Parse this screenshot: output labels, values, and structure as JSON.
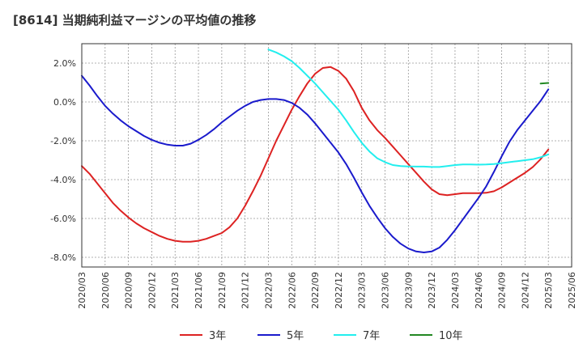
{
  "chart_data": {
    "type": "line",
    "title": "[8614]  当期純利益マージンの平均値の推移",
    "xlabel": "",
    "ylabel": "",
    "x_ticks": [
      "2020/03",
      "2020/06",
      "2020/09",
      "2020/12",
      "2021/03",
      "2021/06",
      "2021/09",
      "2021/12",
      "2022/03",
      "2022/06",
      "2022/09",
      "2022/12",
      "2023/03",
      "2023/06",
      "2023/09",
      "2023/12",
      "2024/03",
      "2024/06",
      "2024/09",
      "2024/12",
      "2025/03",
      "2025/06"
    ],
    "y_ticks": [
      "2.0%",
      "0.0%",
      "-2.0%",
      "-4.0%",
      "-6.0%",
      "-8.0%"
    ],
    "y_tick_values": [
      2,
      0,
      -2,
      -4,
      -6,
      -8
    ],
    "ylim": [
      -8.5,
      3.0
    ],
    "xlim": [
      "2020/03",
      "2025/06"
    ],
    "grid": "dashed vertical and horizontal",
    "legend_position": "bottom",
    "series": [
      {
        "name": "3年",
        "color": "#dd2222",
        "points": [
          [
            "2020/03",
            -3.3
          ],
          [
            "2020/04",
            -3.7
          ],
          [
            "2020/05",
            -4.2
          ],
          [
            "2020/06",
            -4.7
          ],
          [
            "2020/07",
            -5.2
          ],
          [
            "2020/08",
            -5.6
          ],
          [
            "2020/09",
            -5.95
          ],
          [
            "2020/10",
            -6.25
          ],
          [
            "2020/11",
            -6.5
          ],
          [
            "2020/12",
            -6.7
          ],
          [
            "2021/01",
            -6.9
          ],
          [
            "2021/02",
            -7.05
          ],
          [
            "2021/03",
            -7.15
          ],
          [
            "2021/04",
            -7.2
          ],
          [
            "2021/05",
            -7.2
          ],
          [
            "2021/06",
            -7.15
          ],
          [
            "2021/07",
            -7.05
          ],
          [
            "2021/08",
            -6.9
          ],
          [
            "2021/09",
            -6.75
          ],
          [
            "2021/10",
            -6.45
          ],
          [
            "2021/11",
            -6.0
          ],
          [
            "2021/12",
            -5.35
          ],
          [
            "2022/01",
            -4.6
          ],
          [
            "2022/02",
            -3.8
          ],
          [
            "2022/03",
            -2.9
          ],
          [
            "2022/04",
            -2.0
          ],
          [
            "2022/05",
            -1.2
          ],
          [
            "2022/06",
            -0.4
          ],
          [
            "2022/07",
            0.3
          ],
          [
            "2022/08",
            0.95
          ],
          [
            "2022/09",
            1.45
          ],
          [
            "2022/10",
            1.75
          ],
          [
            "2022/11",
            1.8
          ],
          [
            "2022/12",
            1.6
          ],
          [
            "2023/01",
            1.2
          ],
          [
            "2023/02",
            0.55
          ],
          [
            "2023/03",
            -0.3
          ],
          [
            "2023/04",
            -0.95
          ],
          [
            "2023/05",
            -1.45
          ],
          [
            "2023/06",
            -1.85
          ],
          [
            "2023/07",
            -2.3
          ],
          [
            "2023/08",
            -2.75
          ],
          [
            "2023/09",
            -3.2
          ],
          [
            "2023/10",
            -3.65
          ],
          [
            "2023/11",
            -4.1
          ],
          [
            "2023/12",
            -4.5
          ],
          [
            "2024/01",
            -4.75
          ],
          [
            "2024/02",
            -4.8
          ],
          [
            "2024/03",
            -4.75
          ],
          [
            "2024/04",
            -4.7
          ],
          [
            "2024/05",
            -4.7
          ],
          [
            "2024/06",
            -4.7
          ],
          [
            "2024/07",
            -4.68
          ],
          [
            "2024/08",
            -4.6
          ],
          [
            "2024/09",
            -4.4
          ],
          [
            "2024/10",
            -4.15
          ],
          [
            "2024/11",
            -3.9
          ],
          [
            "2024/12",
            -3.65
          ],
          [
            "2025/01",
            -3.35
          ],
          [
            "2025/02",
            -2.95
          ],
          [
            "2025/03",
            -2.45
          ]
        ]
      },
      {
        "name": "5年",
        "color": "#1a1acc",
        "points": [
          [
            "2020/03",
            1.35
          ],
          [
            "2020/04",
            0.85
          ],
          [
            "2020/05",
            0.3
          ],
          [
            "2020/06",
            -0.2
          ],
          [
            "2020/07",
            -0.6
          ],
          [
            "2020/08",
            -0.95
          ],
          [
            "2020/09",
            -1.25
          ],
          [
            "2020/10",
            -1.5
          ],
          [
            "2020/11",
            -1.75
          ],
          [
            "2020/12",
            -1.95
          ],
          [
            "2021/01",
            -2.1
          ],
          [
            "2021/02",
            -2.2
          ],
          [
            "2021/03",
            -2.25
          ],
          [
            "2021/04",
            -2.25
          ],
          [
            "2021/05",
            -2.15
          ],
          [
            "2021/06",
            -1.95
          ],
          [
            "2021/07",
            -1.7
          ],
          [
            "2021/08",
            -1.4
          ],
          [
            "2021/09",
            -1.05
          ],
          [
            "2021/10",
            -0.75
          ],
          [
            "2021/11",
            -0.45
          ],
          [
            "2021/12",
            -0.2
          ],
          [
            "2022/01",
            0.0
          ],
          [
            "2022/02",
            0.1
          ],
          [
            "2022/03",
            0.15
          ],
          [
            "2022/04",
            0.15
          ],
          [
            "2022/05",
            0.1
          ],
          [
            "2022/06",
            -0.05
          ],
          [
            "2022/07",
            -0.3
          ],
          [
            "2022/08",
            -0.65
          ],
          [
            "2022/09",
            -1.1
          ],
          [
            "2022/10",
            -1.6
          ],
          [
            "2022/11",
            -2.1
          ],
          [
            "2022/12",
            -2.6
          ],
          [
            "2023/01",
            -3.2
          ],
          [
            "2023/02",
            -3.9
          ],
          [
            "2023/03",
            -4.65
          ],
          [
            "2023/04",
            -5.35
          ],
          [
            "2023/05",
            -5.95
          ],
          [
            "2023/06",
            -6.5
          ],
          [
            "2023/07",
            -6.95
          ],
          [
            "2023/08",
            -7.3
          ],
          [
            "2023/09",
            -7.55
          ],
          [
            "2023/10",
            -7.7
          ],
          [
            "2023/11",
            -7.75
          ],
          [
            "2023/12",
            -7.7
          ],
          [
            "2024/01",
            -7.5
          ],
          [
            "2024/02",
            -7.1
          ],
          [
            "2024/03",
            -6.6
          ],
          [
            "2024/04",
            -6.05
          ],
          [
            "2024/05",
            -5.5
          ],
          [
            "2024/06",
            -4.95
          ],
          [
            "2024/07",
            -4.35
          ],
          [
            "2024/08",
            -3.6
          ],
          [
            "2024/09",
            -2.8
          ],
          [
            "2024/10",
            -2.05
          ],
          [
            "2024/11",
            -1.45
          ],
          [
            "2024/12",
            -0.95
          ],
          [
            "2025/01",
            -0.45
          ],
          [
            "2025/02",
            0.05
          ],
          [
            "2025/03",
            0.65
          ]
        ]
      },
      {
        "name": "7年",
        "color": "#22eeee",
        "points": [
          [
            "2022/03",
            2.7
          ],
          [
            "2022/04",
            2.55
          ],
          [
            "2022/05",
            2.35
          ],
          [
            "2022/06",
            2.1
          ],
          [
            "2022/07",
            1.75
          ],
          [
            "2022/08",
            1.35
          ],
          [
            "2022/09",
            0.95
          ],
          [
            "2022/10",
            0.5
          ],
          [
            "2022/11",
            0.05
          ],
          [
            "2022/12",
            -0.4
          ],
          [
            "2023/01",
            -0.95
          ],
          [
            "2023/02",
            -1.55
          ],
          [
            "2023/03",
            -2.1
          ],
          [
            "2023/04",
            -2.55
          ],
          [
            "2023/05",
            -2.9
          ],
          [
            "2023/06",
            -3.1
          ],
          [
            "2023/07",
            -3.25
          ],
          [
            "2023/08",
            -3.3
          ],
          [
            "2023/09",
            -3.32
          ],
          [
            "2023/10",
            -3.33
          ],
          [
            "2023/11",
            -3.33
          ],
          [
            "2023/12",
            -3.35
          ],
          [
            "2024/01",
            -3.35
          ],
          [
            "2024/02",
            -3.3
          ],
          [
            "2024/03",
            -3.25
          ],
          [
            "2024/04",
            -3.22
          ],
          [
            "2024/05",
            -3.22
          ],
          [
            "2024/06",
            -3.23
          ],
          [
            "2024/07",
            -3.22
          ],
          [
            "2024/08",
            -3.2
          ],
          [
            "2024/09",
            -3.15
          ],
          [
            "2024/10",
            -3.1
          ],
          [
            "2024/11",
            -3.05
          ],
          [
            "2024/12",
            -3.0
          ],
          [
            "2025/01",
            -2.95
          ],
          [
            "2025/02",
            -2.85
          ],
          [
            "2025/03",
            -2.7
          ]
        ]
      },
      {
        "name": "10年",
        "color": "#228822",
        "points": [
          [
            "2025/02",
            0.95
          ],
          [
            "2025/03",
            0.98
          ]
        ]
      }
    ]
  }
}
